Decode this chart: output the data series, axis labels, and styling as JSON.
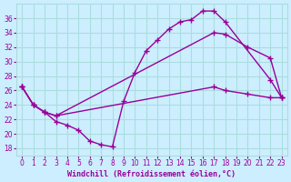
{
  "xlabel": "Windchill (Refroidissement éolien,°C)",
  "bg_color": "#cceeff",
  "line_color": "#990099",
  "grid_color": "#aadddd",
  "xlim": [
    0,
    23
  ],
  "ylim": [
    17,
    37
  ],
  "yticks": [
    18,
    20,
    22,
    24,
    26,
    28,
    30,
    32,
    34,
    36
  ],
  "xticks": [
    0,
    1,
    2,
    3,
    4,
    5,
    6,
    7,
    8,
    9,
    10,
    11,
    12,
    13,
    14,
    15,
    16,
    17,
    18,
    19,
    20,
    21,
    22,
    23
  ],
  "line1_x": [
    0,
    1,
    2,
    3,
    4,
    5,
    6,
    7,
    8,
    9,
    10,
    11,
    12,
    13,
    14,
    15,
    16,
    17,
    18,
    22,
    23
  ],
  "line1_y": [
    26.5,
    24.0,
    23.0,
    21.7,
    21.2,
    20.5,
    19.0,
    18.5,
    18.2,
    24.5,
    28.5,
    31.5,
    33.0,
    34.5,
    35.5,
    35.8,
    37.0,
    37.0,
    35.5,
    27.5,
    25.0
  ],
  "line2_x": [
    0,
    1,
    2,
    3,
    17,
    18,
    20,
    22,
    23
  ],
  "line2_y": [
    26.5,
    24.0,
    23.0,
    22.5,
    34.0,
    33.8,
    32.0,
    30.5,
    25.0
  ],
  "line3_x": [
    0,
    1,
    2,
    3,
    17,
    18,
    20,
    22,
    23
  ],
  "line3_y": [
    26.5,
    24.0,
    23.0,
    22.5,
    26.5,
    26.0,
    25.5,
    25.0,
    25.0
  ]
}
